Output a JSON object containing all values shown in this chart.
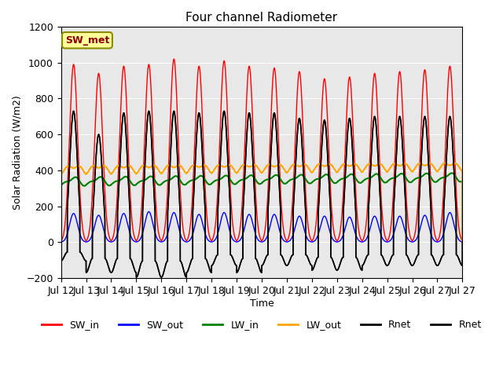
{
  "title": "Four channel Radiometer",
  "xlabel": "Time",
  "ylabel": "Solar Radiation (W/m2)",
  "ylim": [
    -200,
    1200
  ],
  "xlim": [
    0,
    16
  ],
  "x_tick_labels": [
    "Jul 12",
    "Jul 13",
    "Jul 14",
    "Jul 15",
    "Jul 16",
    "Jul 17",
    "Jul 18",
    "Jul 19",
    "Jul 20",
    "Jul 21",
    "Jul 22",
    "Jul 23",
    "Jul 24",
    "Jul 25",
    "Jul 26",
    "Jul 27"
  ],
  "x_tick_positions": [
    0,
    1,
    2,
    3,
    4,
    5,
    6,
    7,
    8,
    9,
    10,
    11,
    12,
    13,
    14,
    15
  ],
  "annotation": "SW_met",
  "annotation_color": "#8B0000",
  "annotation_bg": "#FFFF99",
  "bg_plot": "#E8E8E8",
  "legend_entries": [
    "SW_in",
    "SW_out",
    "LW_in",
    "LW_out",
    "Rnet",
    "Rnet"
  ],
  "legend_colors": [
    "red",
    "blue",
    "green",
    "orange",
    "black",
    "black"
  ],
  "n_days": 16,
  "SW_in_peaks": [
    990,
    940,
    980,
    990,
    1020,
    980,
    1010,
    980,
    970,
    950,
    910,
    920,
    940,
    950,
    960,
    980
  ],
  "SW_out_peaks": [
    160,
    150,
    160,
    170,
    165,
    155,
    165,
    155,
    155,
    145,
    145,
    140,
    145,
    145,
    150,
    165
  ],
  "Rnet_peaks": [
    730,
    600,
    720,
    730,
    730,
    720,
    730,
    720,
    720,
    690,
    680,
    690,
    700,
    700,
    700,
    700
  ],
  "Rnet_mins": [
    -80,
    -130,
    -130,
    -150,
    -150,
    -130,
    -100,
    -130,
    -100,
    -100,
    -120,
    -120,
    -100,
    -100,
    -100,
    -100
  ]
}
